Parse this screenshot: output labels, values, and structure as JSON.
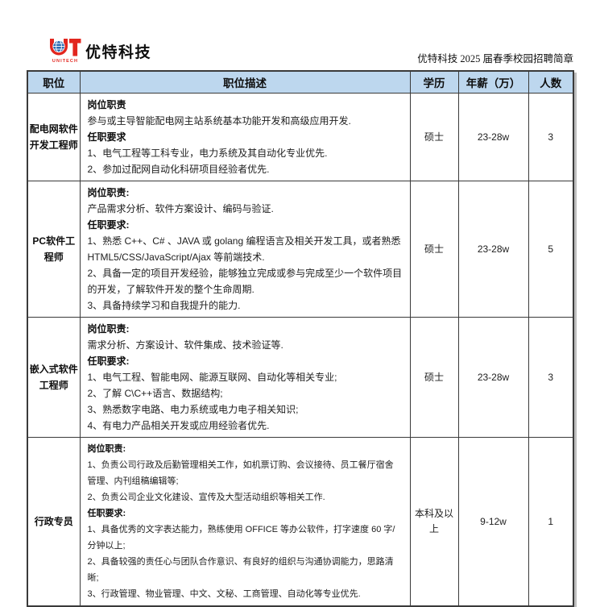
{
  "header": {
    "logo": {
      "sub": "UNITECH",
      "company": "优特科技"
    },
    "doc_title": "优特科技 2025 届春季校园招聘简章"
  },
  "icons": {
    "logo": "ut-globe-monogram"
  },
  "table": {
    "columns": [
      "职位",
      "职位描述",
      "学历",
      "年薪（万）",
      "人数"
    ],
    "rows": [
      {
        "position": "配电网软件开发工程师",
        "description": [
          {
            "bold": true,
            "text": "岗位职责"
          },
          {
            "bold": false,
            "text": "参与或主导智能配电网主站系统基本功能开发和高级应用开发."
          },
          {
            "bold": true,
            "text": "任职要求"
          },
          {
            "bold": false,
            "text": "1、电气工程等工科专业，电力系统及其自动化专业优先."
          },
          {
            "bold": false,
            "text": "2、参加过配网自动化科研项目经验者优先."
          }
        ],
        "education": "硕士",
        "salary": "23-28w",
        "headcount": "3"
      },
      {
        "position": "PC软件工程师",
        "description": [
          {
            "bold": true,
            "text": "岗位职责:"
          },
          {
            "bold": false,
            "text": "产品需求分析、软件方案设计、编码与验证."
          },
          {
            "bold": true,
            "text": "任职要求:"
          },
          {
            "bold": false,
            "text": "1、熟悉 C++、C# 、JAVA 或 golang 编程语言及相关开发工具，或者熟悉 HTML5/CSS/JavaScript/Ajax 等前端技术."
          },
          {
            "bold": false,
            "text": "2、具备一定的项目开发经验，能够独立完成或参与完成至少一个软件项目的开发，了解软件开发的整个生命周期."
          },
          {
            "bold": false,
            "text": "3、具备持续学习和自我提升的能力."
          }
        ],
        "education": "硕士",
        "salary": "23-28w",
        "headcount": "5"
      },
      {
        "position": "嵌入式软件工程师",
        "description": [
          {
            "bold": true,
            "text": "岗位职责:"
          },
          {
            "bold": false,
            "text": "需求分析、方案设计、软件集成、技术验证等."
          },
          {
            "bold": true,
            "text": "任职要求:"
          },
          {
            "bold": false,
            "text": "1、电气工程、智能电网、能源互联网、自动化等相关专业;"
          },
          {
            "bold": false,
            "text": "2、了解 C\\C++语言、数据结构;"
          },
          {
            "bold": false,
            "text": "3、熟悉数字电路、电力系统或电力电子相关知识;"
          },
          {
            "bold": false,
            "text": "4、有电力产品相关开发或应用经验者优先."
          }
        ],
        "education": "硕士",
        "salary": "23-28w",
        "headcount": "3"
      },
      {
        "position": "行政专员",
        "description": [
          {
            "bold": true,
            "text": "岗位职责:"
          },
          {
            "bold": false,
            "text": "1、负责公司行政及后勤管理相关工作，如机票订购、会议接待、员工餐厅宿舍管理、内刊组稿编辑等;"
          },
          {
            "bold": false,
            "text": "2、负责公司企业文化建设、宣传及大型活动组织等相关工作."
          },
          {
            "bold": true,
            "text": "任职要求:"
          },
          {
            "bold": false,
            "text": "1、具备优秀的文字表达能力，熟练使用 OFFICE 等办公软件，打字速度 60 字/分钟以上;"
          },
          {
            "bold": false,
            "text": "2、具备较强的责任心与团队合作意识、有良好的组织与沟通协调能力，思路清晰;"
          },
          {
            "bold": false,
            "text": "3、行政管理、物业管理、中文、文秘、工商管理、自动化等专业优先."
          }
        ],
        "education": "本科及以上",
        "salary": "9-12w",
        "headcount": "1"
      }
    ]
  },
  "colors": {
    "header_bg": "#bdd7ee",
    "border": "#3a3a3a",
    "logo_red": "#e2261f",
    "logo_blue": "#2a6db4"
  }
}
